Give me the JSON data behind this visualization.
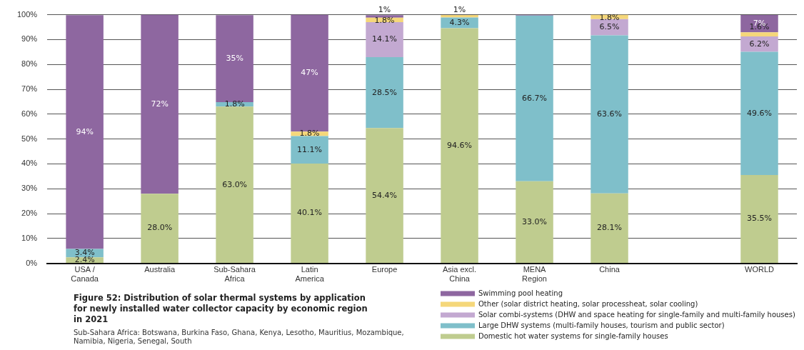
{
  "chart_data": {
    "type": "bar",
    "stacked": true,
    "title": "Figure 52: Distribution of solar thermal systems by application for newly installed water collector capacity by economic region in 2021",
    "annotations": [
      "Sub-Sahara Africa: Botswana, Burkina Faso, Ghana, Kenya, Lesotho, Mauritius, Mozambique, Namibia, Nigeria, Senegal, South"
    ],
    "categories": [
      "USA / Canada",
      "Australia",
      "Sub-Sahara Africa",
      "Latin America",
      "Europe",
      "Asia excl. China",
      "MENA Region",
      "China",
      null,
      "WORLD"
    ],
    "series": [
      {
        "name": "Domestic hot water systems for single-family houses",
        "color": "#bfcc8f",
        "values": [
          2.4,
          28.0,
          63.0,
          40.1,
          54.4,
          94.6,
          33.0,
          28.1,
          null,
          35.5
        ],
        "value_labels": [
          "2.4%",
          "28.0%",
          "63.0%",
          "40.1%",
          "54.4%",
          "94.6%",
          "33.0%",
          "28.1%",
          null,
          "35.5%"
        ]
      },
      {
        "name": "Large DHW systems (multi-family houses, tourism and public sector)",
        "color": "#7fbfca",
        "values": [
          3.4,
          null,
          1.8,
          11.1,
          28.5,
          4.3,
          66.7,
          63.6,
          null,
          49.6
        ],
        "value_labels": [
          "3.4%",
          null,
          "1.8%",
          "11.1%",
          "28.5%",
          "4.3%",
          "66.7%",
          "63.6%",
          null,
          "49.6%"
        ]
      },
      {
        "name": "Solar combi-systems (DHW and space heating for single-family and multi-family houses)",
        "color": "#c3a9d1",
        "values": [
          null,
          null,
          null,
          null,
          14.1,
          null,
          null,
          6.5,
          null,
          6.2
        ],
        "value_labels": [
          null,
          null,
          null,
          null,
          "14.1%",
          null,
          null,
          "6.5%",
          null,
          "6.2%"
        ]
      },
      {
        "name": "Other (solar district heating, solar processheat, solar cooling)",
        "color": "#f5d77a",
        "values": [
          null,
          null,
          null,
          1.8,
          1.8,
          1,
          null,
          1.8,
          null,
          1.6
        ],
        "value_labels": [
          null,
          null,
          null,
          "1.8%",
          "1.8%",
          "1%",
          null,
          "1.8%",
          null,
          "1.6%"
        ]
      },
      {
        "name": "Swimming pool heating",
        "color": "#8e67a0",
        "values": [
          94,
          72,
          35,
          47,
          1,
          null,
          0.3,
          null,
          null,
          7
        ],
        "value_labels": [
          "94%",
          "72%",
          "35%",
          "47%",
          "1%",
          null,
          null,
          null,
          null,
          "7%"
        ]
      }
    ],
    "ylim": [
      0,
      100
    ],
    "yticks": [
      {
        "value": 0,
        "label": "0%"
      },
      {
        "value": 10,
        "label": "10%"
      },
      {
        "value": 20,
        "label": "20%"
      },
      {
        "value": 30,
        "label": "30%"
      },
      {
        "value": 40,
        "label": "40%"
      },
      {
        "value": 50,
        "label": "50%"
      },
      {
        "value": 60,
        "label": "60%"
      },
      {
        "value": 70,
        "label": "70%"
      },
      {
        "value": 80,
        "label": "80%"
      },
      {
        "value": 90,
        "label": "90%"
      },
      {
        "value": 100,
        "label": "100%"
      }
    ],
    "grid": "y",
    "legend": "bottom right"
  }
}
